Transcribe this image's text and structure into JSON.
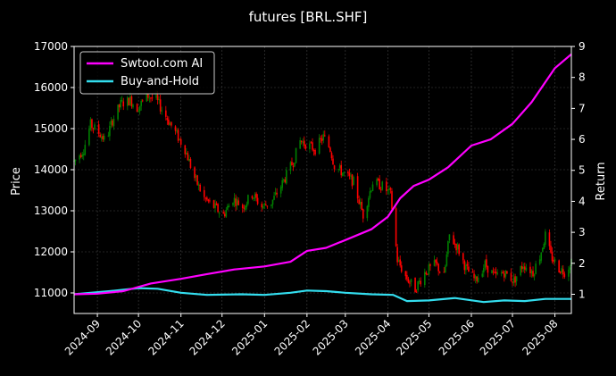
{
  "chart_data": {
    "type": "candlestick+line",
    "title": "futures [BRL.SHF]",
    "ylabel_left": "Price",
    "ylabel_right": "Return",
    "ylim_left": [
      10500,
      17000
    ],
    "ylim_right": [
      0.38,
      9.0
    ],
    "y_ticks_left": [
      "11000",
      "12000",
      "13000",
      "14000",
      "15000",
      "16000",
      "17000"
    ],
    "y_ticks_right": [
      "1",
      "2",
      "3",
      "4",
      "5",
      "6",
      "7",
      "8",
      "9"
    ],
    "x_start": "2024-08-15",
    "x_end": "2025-08-13",
    "x_ticks": [
      "2024-09",
      "2024-10",
      "2024-11",
      "2024-12",
      "2025-01",
      "2025-02",
      "2025-03",
      "2025-04",
      "2025-05",
      "2025-06",
      "2025-07",
      "2025-08"
    ],
    "grid": true,
    "legend_position": "top-left",
    "legend": [
      "Swtool.com AI",
      "Buy-and-Hold"
    ],
    "colors": {
      "up": "#008000",
      "down": "#ff0000",
      "ai_line": "#ff00ff",
      "bh_line": "#33ddee",
      "background": "#000000",
      "grid": "#444444",
      "text": "#ffffff"
    },
    "price_path": [
      [
        "2024-08-15",
        14200
      ],
      [
        "2024-08-22",
        14500
      ],
      [
        "2024-08-27",
        15100
      ],
      [
        "2024-09-02",
        14900
      ],
      [
        "2024-09-07",
        14700
      ],
      [
        "2024-09-12",
        15200
      ],
      [
        "2024-09-18",
        15600
      ],
      [
        "2024-09-25",
        15700
      ],
      [
        "2024-09-30",
        15500
      ],
      [
        "2024-10-08",
        15800
      ],
      [
        "2024-10-14",
        15700
      ],
      [
        "2024-10-21",
        15300
      ],
      [
        "2024-10-28",
        14900
      ],
      [
        "2024-11-04",
        14500
      ],
      [
        "2024-11-11",
        13800
      ],
      [
        "2024-11-18",
        13300
      ],
      [
        "2024-11-25",
        13100
      ],
      [
        "2024-12-02",
        12900
      ],
      [
        "2024-12-09",
        13300
      ],
      [
        "2024-12-16",
        13100
      ],
      [
        "2024-12-23",
        13400
      ],
      [
        "2024-12-30",
        13100
      ],
      [
        "2025-01-06",
        13200
      ],
      [
        "2025-01-13",
        13600
      ],
      [
        "2025-01-22",
        14200
      ],
      [
        "2025-01-27",
        14700
      ],
      [
        "2025-02-07",
        14500
      ],
      [
        "2025-02-13",
        14800
      ],
      [
        "2025-02-18",
        14500
      ],
      [
        "2025-02-21",
        14100
      ],
      [
        "2025-02-28",
        13900
      ],
      [
        "2025-03-07",
        13700
      ],
      [
        "2025-03-14",
        12900
      ],
      [
        "2025-03-21",
        13700
      ],
      [
        "2025-03-28",
        13600
      ],
      [
        "2025-04-03",
        13400
      ],
      [
        "2025-04-08",
        11800
      ],
      [
        "2025-04-14",
        11400
      ],
      [
        "2025-04-21",
        11100
      ],
      [
        "2025-04-28",
        11500
      ],
      [
        "2025-05-06",
        11700
      ],
      [
        "2025-05-12",
        11400
      ],
      [
        "2025-05-16",
        12400
      ],
      [
        "2025-05-22",
        12100
      ],
      [
        "2025-05-28",
        11600
      ],
      [
        "2025-06-04",
        11300
      ],
      [
        "2025-06-11",
        11700
      ],
      [
        "2025-06-18",
        11400
      ],
      [
        "2025-06-25",
        11500
      ],
      [
        "2025-07-02",
        11300
      ],
      [
        "2025-07-09",
        11700
      ],
      [
        "2025-07-16",
        11500
      ],
      [
        "2025-07-21",
        11900
      ],
      [
        "2025-07-25",
        12400
      ],
      [
        "2025-07-29",
        11900
      ],
      [
        "2025-08-04",
        11600
      ],
      [
        "2025-08-09",
        11500
      ],
      [
        "2025-08-13",
        11800
      ]
    ],
    "ai_return_path": [
      [
        "2024-08-15",
        1.0
      ],
      [
        "2024-09-01",
        1.02
      ],
      [
        "2024-09-20",
        1.1
      ],
      [
        "2024-10-10",
        1.35
      ],
      [
        "2024-11-01",
        1.5
      ],
      [
        "2024-11-20",
        1.65
      ],
      [
        "2024-12-10",
        1.8
      ],
      [
        "2025-01-01",
        1.9
      ],
      [
        "2025-01-20",
        2.05
      ],
      [
        "2025-02-01",
        2.4
      ],
      [
        "2025-02-15",
        2.5
      ],
      [
        "2025-03-01",
        2.75
      ],
      [
        "2025-03-20",
        3.1
      ],
      [
        "2025-04-01",
        3.5
      ],
      [
        "2025-04-10",
        4.1
      ],
      [
        "2025-04-20",
        4.5
      ],
      [
        "2025-05-01",
        4.7
      ],
      [
        "2025-05-15",
        5.1
      ],
      [
        "2025-06-01",
        5.8
      ],
      [
        "2025-06-15",
        6.0
      ],
      [
        "2025-07-01",
        6.5
      ],
      [
        "2025-07-15",
        7.2
      ],
      [
        "2025-08-01",
        8.3
      ],
      [
        "2025-08-13",
        8.75
      ]
    ],
    "bh_return_path": [
      [
        "2024-08-15",
        1.0
      ],
      [
        "2024-09-10",
        1.1
      ],
      [
        "2024-10-01",
        1.2
      ],
      [
        "2024-10-15",
        1.18
      ],
      [
        "2024-11-01",
        1.05
      ],
      [
        "2024-11-20",
        0.98
      ],
      [
        "2024-12-15",
        1.0
      ],
      [
        "2025-01-01",
        0.98
      ],
      [
        "2025-01-20",
        1.05
      ],
      [
        "2025-02-01",
        1.12
      ],
      [
        "2025-02-15",
        1.1
      ],
      [
        "2025-03-01",
        1.05
      ],
      [
        "2025-03-20",
        1.0
      ],
      [
        "2025-04-05",
        0.98
      ],
      [
        "2025-04-15",
        0.78
      ],
      [
        "2025-05-01",
        0.8
      ],
      [
        "2025-05-20",
        0.88
      ],
      [
        "2025-06-10",
        0.75
      ],
      [
        "2025-06-25",
        0.8
      ],
      [
        "2025-07-10",
        0.78
      ],
      [
        "2025-07-25",
        0.85
      ],
      [
        "2025-08-13",
        0.85
      ]
    ]
  }
}
